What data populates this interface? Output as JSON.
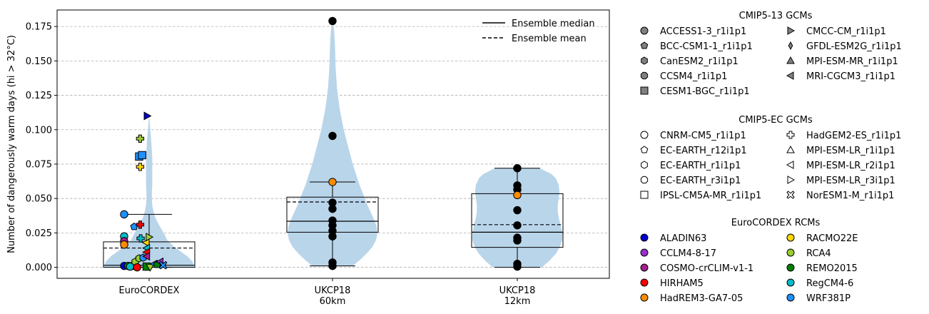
{
  "chart_data": {
    "type": "violin",
    "title": "",
    "ylabel": "Number of dangerously warm days (hi > 32°C)",
    "ylim": [
      -0.008,
      0.187
    ],
    "yticks": [
      0.0,
      0.025,
      0.05,
      0.075,
      0.1,
      0.125,
      0.15,
      0.175
    ],
    "ytick_labels": [
      "0.000",
      "0.025",
      "0.050",
      "0.075",
      "0.100",
      "0.125",
      "0.150",
      "0.175"
    ],
    "grid": "y-dashed",
    "categories": [
      {
        "id": "euro",
        "lines": [
          "EuroCORDEX"
        ]
      },
      {
        "id": "uk60",
        "lines": [
          "UKCP18",
          "60km"
        ]
      },
      {
        "id": "uk12",
        "lines": [
          "UKCP18",
          "12km"
        ]
      }
    ],
    "violin_color": "#b9d5ea",
    "groups": [
      {
        "category": "euro",
        "median": 0.0015,
        "mean": 0.014,
        "q1": 0.0,
        "q3": 0.0185,
        "whisker_low": 0.0,
        "whisker_high": 0.0385,
        "violin_range": [
          0.0,
          0.11
        ],
        "density": [
          [
            0.0,
            1.0
          ],
          [
            0.004,
            0.97
          ],
          [
            0.008,
            0.85
          ],
          [
            0.012,
            0.68
          ],
          [
            0.016,
            0.52
          ],
          [
            0.02,
            0.4
          ],
          [
            0.024,
            0.34
          ],
          [
            0.028,
            0.27
          ],
          [
            0.032,
            0.2
          ],
          [
            0.036,
            0.14
          ],
          [
            0.04,
            0.1
          ],
          [
            0.045,
            0.07
          ],
          [
            0.05,
            0.06
          ],
          [
            0.055,
            0.06
          ],
          [
            0.06,
            0.07
          ],
          [
            0.065,
            0.07
          ],
          [
            0.07,
            0.07
          ],
          [
            0.075,
            0.07
          ],
          [
            0.08,
            0.07
          ],
          [
            0.085,
            0.06
          ],
          [
            0.09,
            0.05
          ],
          [
            0.095,
            0.04
          ],
          [
            0.1,
            0.025
          ],
          [
            0.105,
            0.015
          ],
          [
            0.11,
            0.003
          ]
        ],
        "points": [
          {
            "dx": -0.5,
            "y": 0.0385,
            "marker": "circle",
            "color": "#1e90ff"
          },
          {
            "dx": -0.3,
            "y": 0.0295,
            "marker": "pentagon",
            "color": "#1e90ff"
          },
          {
            "dx": -0.5,
            "y": 0.0225,
            "marker": "circle",
            "color": "#00bcc8"
          },
          {
            "dx": -0.5,
            "y": 0.019,
            "marker": "circle",
            "color": "#a4208a"
          },
          {
            "dx": -0.5,
            "y": 0.0165,
            "marker": "circle",
            "color": "#ff8c00"
          },
          {
            "dx": -0.5,
            "y": 0.001,
            "marker": "circle",
            "color": "#0000cd"
          },
          {
            "dx": -0.42,
            "y": 0.001,
            "marker": "circle",
            "color": "#008000"
          },
          {
            "dx": -0.34,
            "y": 0.001,
            "marker": "circle",
            "color": "#9932cc"
          },
          {
            "dx": -0.28,
            "y": 0.004,
            "marker": "hexagon",
            "color": "#9acd32"
          },
          {
            "dx": -0.2,
            "y": 0.0065,
            "marker": "hexagon",
            "color": "#9acd32"
          },
          {
            "dx": -0.12,
            "y": 0.007,
            "marker": "hexagon",
            "color": "#1e90ff"
          },
          {
            "dx": -0.38,
            "y": 0.0005,
            "marker": "circle",
            "color": "#00bcc8"
          },
          {
            "dx": -0.24,
            "y": 0.0,
            "marker": "circle",
            "color": "#ff0000"
          },
          {
            "dx": -0.05,
            "y": 0.0005,
            "marker": "square",
            "color": "#008000"
          },
          {
            "dx": 0.02,
            "y": 0.0,
            "marker": "tri-down",
            "color": "#9acd32"
          },
          {
            "dx": 0.1,
            "y": 0.0025,
            "marker": "tri-left",
            "color": "#1e90ff"
          },
          {
            "dx": 0.16,
            "y": 0.002,
            "marker": "pentagon",
            "color": "#008000"
          },
          {
            "dx": 0.22,
            "y": 0.004,
            "marker": "tri-left",
            "color": "#9932cc"
          },
          {
            "dx": 0.28,
            "y": 0.0015,
            "marker": "x-cross",
            "color": "#1e90ff"
          },
          {
            "dx": -0.18,
            "y": 0.031,
            "marker": "plus",
            "color": "#ff0000"
          },
          {
            "dx": -0.17,
            "y": 0.021,
            "marker": "plus",
            "color": "#00bcc8"
          },
          {
            "dx": -0.06,
            "y": 0.018,
            "marker": "tri-left",
            "color": "#ffd700"
          },
          {
            "dx": 0.0,
            "y": 0.022,
            "marker": "tri-right",
            "color": "#9acd32"
          },
          {
            "dx": -0.05,
            "y": 0.014,
            "marker": "tri-left",
            "color": "#00bcc8"
          },
          {
            "dx": -0.05,
            "y": 0.011,
            "marker": "tri-left",
            "color": "#ff0000"
          },
          {
            "dx": -0.05,
            "y": 0.008,
            "marker": "tri-left",
            "color": "#a4208a"
          },
          {
            "dx": -0.18,
            "y": 0.0935,
            "marker": "plus",
            "color": "#9acd32"
          },
          {
            "dx": -0.2,
            "y": 0.0805,
            "marker": "square",
            "color": "#1e90ff"
          },
          {
            "dx": -0.14,
            "y": 0.0815,
            "marker": "square",
            "color": "#1e90ff"
          },
          {
            "dx": -0.18,
            "y": 0.073,
            "marker": "plus",
            "color": "#ffd700"
          },
          {
            "dx": -0.04,
            "y": 0.11,
            "marker": "tri-right",
            "color": "#0000cd"
          }
        ]
      },
      {
        "category": "uk60",
        "median": 0.0335,
        "mean": 0.0475,
        "q1": 0.0255,
        "q3": 0.051,
        "whisker_low": 0.001,
        "whisker_high": 0.062,
        "violin_range": [
          0.001,
          0.179
        ],
        "density": [
          [
            0.001,
            0.45
          ],
          [
            0.005,
            0.6
          ],
          [
            0.01,
            0.76
          ],
          [
            0.015,
            0.89
          ],
          [
            0.02,
            0.97
          ],
          [
            0.025,
            1.0
          ],
          [
            0.03,
            0.98
          ],
          [
            0.035,
            0.92
          ],
          [
            0.04,
            0.85
          ],
          [
            0.045,
            0.78
          ],
          [
            0.05,
            0.72
          ],
          [
            0.055,
            0.66
          ],
          [
            0.06,
            0.6
          ],
          [
            0.065,
            0.55
          ],
          [
            0.07,
            0.5
          ],
          [
            0.075,
            0.45
          ],
          [
            0.08,
            0.41
          ],
          [
            0.085,
            0.37
          ],
          [
            0.09,
            0.33
          ],
          [
            0.095,
            0.29
          ],
          [
            0.1,
            0.25
          ],
          [
            0.105,
            0.22
          ],
          [
            0.11,
            0.19
          ],
          [
            0.115,
            0.16
          ],
          [
            0.12,
            0.14
          ],
          [
            0.125,
            0.12
          ],
          [
            0.13,
            0.1
          ],
          [
            0.135,
            0.09
          ],
          [
            0.14,
            0.08
          ],
          [
            0.145,
            0.07
          ],
          [
            0.15,
            0.065
          ],
          [
            0.155,
            0.06
          ],
          [
            0.16,
            0.055
          ],
          [
            0.165,
            0.05
          ],
          [
            0.17,
            0.04
          ],
          [
            0.175,
            0.025
          ],
          [
            0.179,
            0.005
          ]
        ],
        "points": [
          {
            "dx": 0,
            "y": 0.179,
            "marker": "circle",
            "color": "#000000"
          },
          {
            "dx": 0,
            "y": 0.0955,
            "marker": "circle",
            "color": "#000000"
          },
          {
            "dx": 0,
            "y": 0.062,
            "marker": "circle",
            "color": "#ff8c00"
          },
          {
            "dx": 0,
            "y": 0.047,
            "marker": "circle",
            "color": "#000000"
          },
          {
            "dx": 0,
            "y": 0.0425,
            "marker": "circle",
            "color": "#000000"
          },
          {
            "dx": 0,
            "y": 0.034,
            "marker": "circle",
            "color": "#000000"
          },
          {
            "dx": 0,
            "y": 0.0305,
            "marker": "circle",
            "color": "#000000"
          },
          {
            "dx": 0,
            "y": 0.0265,
            "marker": "circle",
            "color": "#000000"
          },
          {
            "dx": 0,
            "y": 0.0225,
            "marker": "circle",
            "color": "#000000"
          },
          {
            "dx": 0,
            "y": 0.0035,
            "marker": "circle",
            "color": "#000000"
          },
          {
            "dx": 0,
            "y": 0.001,
            "marker": "circle",
            "color": "#000000"
          }
        ]
      },
      {
        "category": "uk12",
        "median": 0.0255,
        "mean": 0.031,
        "q1": 0.0145,
        "q3": 0.0535,
        "whisker_low": 0.0,
        "whisker_high": 0.072,
        "violin_range": [
          0.0,
          0.072
        ],
        "density": [
          [
            0.0,
            0.55
          ],
          [
            0.005,
            0.72
          ],
          [
            0.01,
            0.86
          ],
          [
            0.015,
            0.95
          ],
          [
            0.02,
            1.0
          ],
          [
            0.025,
            1.0
          ],
          [
            0.03,
            0.97
          ],
          [
            0.035,
            0.93
          ],
          [
            0.04,
            0.9
          ],
          [
            0.045,
            0.9
          ],
          [
            0.05,
            0.92
          ],
          [
            0.055,
            0.94
          ],
          [
            0.06,
            0.92
          ],
          [
            0.065,
            0.85
          ],
          [
            0.068,
            0.75
          ],
          [
            0.07,
            0.62
          ],
          [
            0.072,
            0.5
          ]
        ],
        "points": [
          {
            "dx": 0,
            "y": 0.072,
            "marker": "circle",
            "color": "#000000"
          },
          {
            "dx": 0,
            "y": 0.0595,
            "marker": "circle",
            "color": "#000000"
          },
          {
            "dx": 0,
            "y": 0.0565,
            "marker": "circle",
            "color": "#000000"
          },
          {
            "dx": 0,
            "y": 0.0525,
            "marker": "circle",
            "color": "#ff8c00"
          },
          {
            "dx": 0,
            "y": 0.0415,
            "marker": "circle",
            "color": "#000000"
          },
          {
            "dx": 0,
            "y": 0.0305,
            "marker": "circle",
            "color": "#000000"
          },
          {
            "dx": 0,
            "y": 0.0215,
            "marker": "circle",
            "color": "#000000"
          },
          {
            "dx": 0,
            "y": 0.0195,
            "marker": "circle",
            "color": "#000000"
          },
          {
            "dx": 0,
            "y": 0.0025,
            "marker": "circle",
            "color": "#000000"
          },
          {
            "dx": 0,
            "y": 0.0005,
            "marker": "circle",
            "color": "#000000"
          }
        ]
      }
    ],
    "legend_lines": {
      "position": "top-right",
      "items": [
        {
          "label": "Ensemble median",
          "style": "solid"
        },
        {
          "label": "Ensemble mean",
          "style": "dashed"
        }
      ]
    },
    "legends": [
      {
        "title": "CMIP5-13 GCMs",
        "columns": [
          [
            {
              "label": "ACCESS1-3_r1i1p1",
              "marker": "circle",
              "color": "#808080"
            },
            {
              "label": "BCC-CSM1-1_r1i1p1",
              "marker": "pentagon",
              "color": "#808080"
            },
            {
              "label": "CanESM2_r1i1p1",
              "marker": "hexagon",
              "color": "#808080"
            },
            {
              "label": "CCSM4_r1i1p1",
              "marker": "octagon",
              "color": "#808080"
            },
            {
              "label": "CESM1-BGC_r1i1p1",
              "marker": "square",
              "color": "#808080"
            }
          ],
          [
            {
              "label": "CMCC-CM_r1i1p1",
              "marker": "tri-right",
              "color": "#808080"
            },
            {
              "label": "GFDL-ESM2G_r1i1p1",
              "marker": "thin-diamond",
              "color": "#808080"
            },
            {
              "label": "MPI-ESM-MR_r1i1p1",
              "marker": "tri-up",
              "color": "#808080"
            },
            {
              "label": "MRI-CGCM3_r1i1p1",
              "marker": "tri-left",
              "color": "#808080"
            }
          ]
        ]
      },
      {
        "title": "CMIP5-EC GCMs",
        "columns": [
          [
            {
              "label": "CNRM-CM5_r1i1p1",
              "marker": "circle",
              "color": "#ffffff"
            },
            {
              "label": "EC-EARTH_r12i1p1",
              "marker": "pentagon",
              "color": "#ffffff"
            },
            {
              "label": "EC-EARTH_r1i1p1",
              "marker": "hexagon",
              "color": "#ffffff"
            },
            {
              "label": "EC-EARTH_r3i1p1",
              "marker": "octagon",
              "color": "#ffffff"
            },
            {
              "label": "IPSL-CM5A-MR_r1i1p1",
              "marker": "square",
              "color": "#ffffff"
            }
          ],
          [
            {
              "label": "HadGEM2-ES_r1i1p1",
              "marker": "plus",
              "color": "#ffffff"
            },
            {
              "label": "MPI-ESM-LR_r1i1p1",
              "marker": "tri-up",
              "color": "#ffffff"
            },
            {
              "label": "MPI-ESM-LR_r2i1p1",
              "marker": "tri-left",
              "color": "#ffffff"
            },
            {
              "label": "MPI-ESM-LR_r3i1p1",
              "marker": "tri-right",
              "color": "#ffffff"
            },
            {
              "label": "NorESM1-M_r1i1p1",
              "marker": "x-cross",
              "color": "#ffffff"
            }
          ]
        ]
      },
      {
        "title": "EuroCORDEX RCMs",
        "columns": [
          [
            {
              "label": "ALADIN63",
              "marker": "circle",
              "color": "#0000cd"
            },
            {
              "label": "CCLM4-8-17",
              "marker": "circle",
              "color": "#9932cc"
            },
            {
              "label": "COSMO-crCLIM-v1-1",
              "marker": "circle",
              "color": "#a4208a"
            },
            {
              "label": "HIRHAM5",
              "marker": "circle",
              "color": "#ff0000"
            },
            {
              "label": "HadREM3-GA7-05",
              "marker": "circle",
              "color": "#ff8c00"
            }
          ],
          [
            {
              "label": "RACMO22E",
              "marker": "circle",
              "color": "#ffd700"
            },
            {
              "label": "RCA4",
              "marker": "circle",
              "color": "#9acd32"
            },
            {
              "label": "REMO2015",
              "marker": "circle",
              "color": "#008000"
            },
            {
              "label": "RegCM4-6",
              "marker": "circle",
              "color": "#00bcc8"
            },
            {
              "label": "WRF381P",
              "marker": "circle",
              "color": "#1e90ff"
            }
          ]
        ]
      }
    ]
  }
}
